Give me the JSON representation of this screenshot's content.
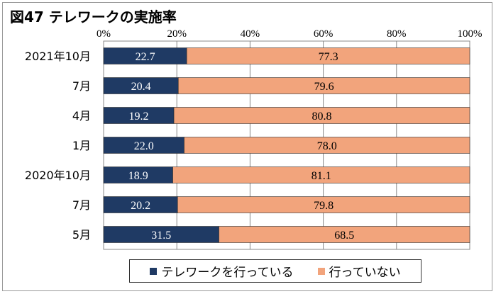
{
  "title": "図47 テレワークの実施率",
  "colors": {
    "series1": "#1f3a64",
    "series2": "#f2a47c"
  },
  "chart_data": {
    "type": "bar",
    "orientation": "horizontal",
    "stacked": true,
    "categories": [
      "2021年10月",
      "7月",
      "4月",
      "1月",
      "2020年10月",
      "7月",
      "5月"
    ],
    "series": [
      {
        "name": "テレワークを行っている",
        "values": [
          22.7,
          20.4,
          19.2,
          22.0,
          18.9,
          20.2,
          31.5
        ]
      },
      {
        "name": "行っていない",
        "values": [
          77.3,
          79.6,
          80.8,
          78.0,
          81.1,
          79.8,
          68.5
        ]
      }
    ],
    "xlim": [
      0,
      100
    ],
    "x_ticks": [
      "0%",
      "20%",
      "40%",
      "60%",
      "80%",
      "100%"
    ],
    "legend_position": "bottom"
  }
}
